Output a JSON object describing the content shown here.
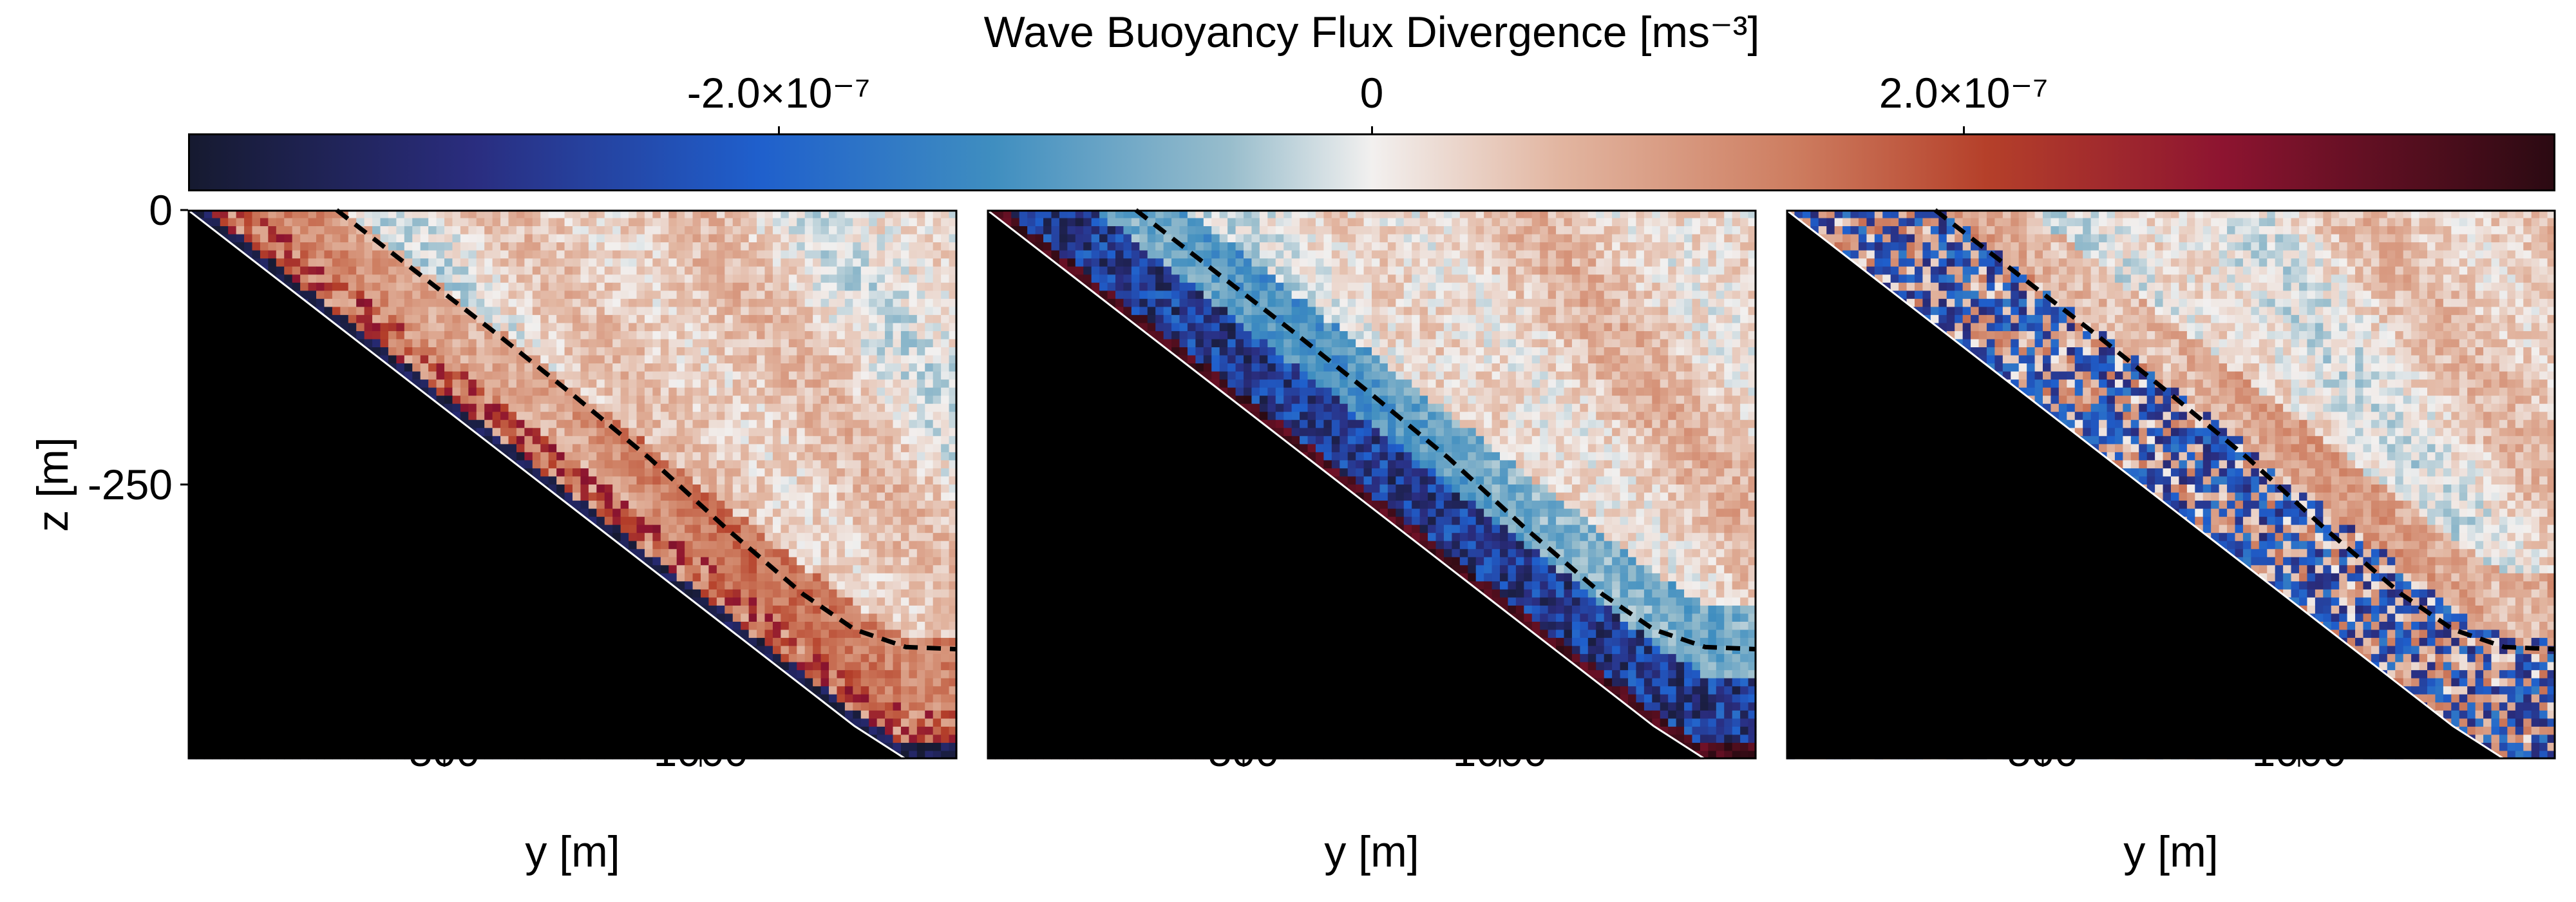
{
  "chart_data": {
    "type": "heatmap",
    "colorbar": {
      "title": "Wave Buoyancy Flux Divergence [ms⁻³]",
      "range": [
        -4e-07,
        4e-07
      ],
      "colormap": "balance (navy → blue → white → red → dark maroon)",
      "stops": [
        {
          "v": 0.0,
          "c": "#161a30"
        },
        {
          "v": 0.12,
          "c": "#2a2d7f"
        },
        {
          "v": 0.24,
          "c": "#1f5fcc"
        },
        {
          "v": 0.34,
          "c": "#3f8ec0"
        },
        {
          "v": 0.44,
          "c": "#98bdcc"
        },
        {
          "v": 0.5,
          "c": "#f2f0ef"
        },
        {
          "v": 0.58,
          "c": "#e2b5a0"
        },
        {
          "v": 0.68,
          "c": "#cd7c5f"
        },
        {
          "v": 0.76,
          "c": "#b5402a"
        },
        {
          "v": 0.86,
          "c": "#8d1430"
        },
        {
          "v": 1.0,
          "c": "#2b0a12"
        }
      ],
      "ticks": [
        {
          "value": -2e-07,
          "label": "-2.0×10⁻⁷"
        },
        {
          "value": 0,
          "label": "0"
        },
        {
          "value": 2e-07,
          "label": "2.0×10⁻⁷"
        }
      ]
    },
    "panels": [
      {
        "bottom_band": "blue-over-red",
        "seed": 11
      },
      {
        "bottom_band": "dark-red-over-blue",
        "seed": 29
      },
      {
        "bottom_band": "blue-streaks",
        "seed": 47
      }
    ],
    "xlabel": "y [m]",
    "ylabel": "z [m]",
    "xlim": [
      0,
      1500
    ],
    "ylim": [
      -500,
      0
    ],
    "x_ticks": [
      {
        "value": 500,
        "label": "500"
      },
      {
        "value": 1000,
        "label": "1000"
      }
    ],
    "y_ticks": [
      {
        "value": 0,
        "label": "0"
      },
      {
        "value": -250,
        "label": "-250"
      }
    ],
    "slope": {
      "description": "black topography below sloping bottom",
      "points": [
        [
          0,
          0
        ],
        [
          1300,
          -470
        ],
        [
          1400,
          -500
        ],
        [
          1500,
          -500
        ]
      ]
    },
    "dashed_line": {
      "style": "dashed black",
      "points": [
        [
          290,
          0
        ],
        [
          450,
          -58
        ],
        [
          600,
          -112
        ],
        [
          750,
          -168
        ],
        [
          900,
          -226
        ],
        [
          1050,
          -290
        ],
        [
          1200,
          -350
        ],
        [
          1300,
          -382
        ],
        [
          1400,
          -398
        ],
        [
          1500,
          -400
        ]
      ]
    },
    "colors": {
      "topography": "#000000",
      "dashed_line": "#000000",
      "background": "#ffffff"
    }
  }
}
